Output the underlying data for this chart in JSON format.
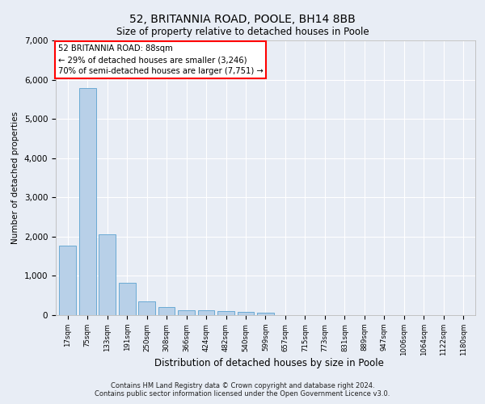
{
  "title_line1": "52, BRITANNIA ROAD, POOLE, BH14 8BB",
  "title_line2": "Size of property relative to detached houses in Poole",
  "xlabel": "Distribution of detached houses by size in Poole",
  "ylabel": "Number of detached properties",
  "footnote1": "Contains HM Land Registry data © Crown copyright and database right 2024.",
  "footnote2": "Contains public sector information licensed under the Open Government Licence v3.0.",
  "annotation_line1": "52 BRITANNIA ROAD: 88sqm",
  "annotation_line2": "← 29% of detached houses are smaller (3,246)",
  "annotation_line3": "70% of semi-detached houses are larger (7,751) →",
  "bar_color": "#b8d0e8",
  "bar_edge_color": "#6aaad4",
  "ylim": [
    0,
    7000
  ],
  "yticks": [
    0,
    1000,
    2000,
    3000,
    4000,
    5000,
    6000,
    7000
  ],
  "categories": [
    "17sqm",
    "75sqm",
    "133sqm",
    "191sqm",
    "250sqm",
    "308sqm",
    "366sqm",
    "424sqm",
    "482sqm",
    "540sqm",
    "599sqm",
    "657sqm",
    "715sqm",
    "773sqm",
    "831sqm",
    "889sqm",
    "947sqm",
    "1006sqm",
    "1064sqm",
    "1122sqm",
    "1180sqm"
  ],
  "values": [
    1780,
    5780,
    2060,
    820,
    350,
    200,
    130,
    115,
    105,
    80,
    65,
    0,
    0,
    0,
    0,
    0,
    0,
    0,
    0,
    0,
    0
  ],
  "bg_color": "#e8edf5",
  "grid_color": "#ffffff"
}
